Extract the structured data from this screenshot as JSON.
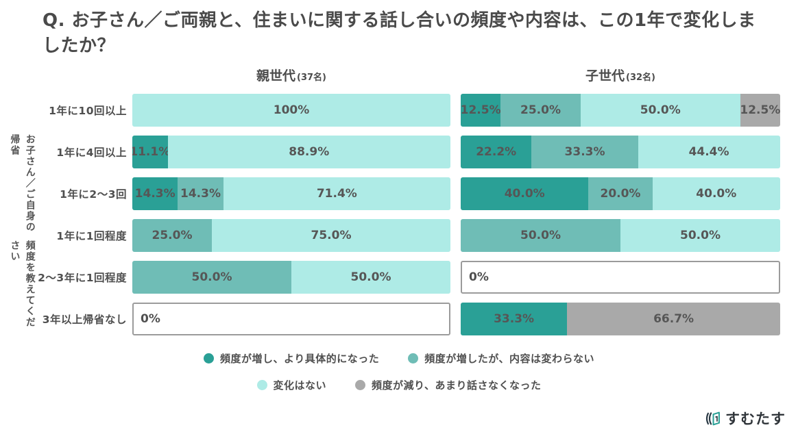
{
  "title": "Q. お子さん／ご両親と、住まいに関する話し合いの頻度や内容は、この1年で変化しましたか？",
  "axis": {
    "line1": "お子さん／ご自身の帰省",
    "line2": "頻度を教えてください"
  },
  "logo": {
    "text": "すむたす"
  },
  "chart_data": {
    "type": "bar",
    "orientation": "horizontal-stacked",
    "unit": "%",
    "zero_label": "0%",
    "categories": [
      "1年に10回以上",
      "1年に4回以上",
      "1年に2〜3回",
      "1年に1回程度",
      "2〜3年に1回程度",
      "3年以上帰省なし"
    ],
    "legend": [
      {
        "key": "increased_concrete",
        "label": "頻度が増し、より具体的になった",
        "color": "#2aa096"
      },
      {
        "key": "increased_same",
        "label": "頻度が増したが、内容は変わらない",
        "color": "#6fbdb6"
      },
      {
        "key": "no_change",
        "label": "変化はない",
        "color": "#aeebe6"
      },
      {
        "key": "decreased",
        "label": "頻度が減り、あまり話さなくなった",
        "color": "#a9a9a9"
      }
    ],
    "legend_rows": [
      [
        "increased_concrete",
        "increased_same"
      ],
      [
        "no_change",
        "decreased"
      ]
    ],
    "groups": [
      {
        "name": "親世代",
        "count_label": "(37名)",
        "rows": [
          {
            "segments": [
              {
                "key": "no_change",
                "value": 100,
                "label": "100%"
              }
            ]
          },
          {
            "segments": [
              {
                "key": "increased_concrete",
                "value": 11.1,
                "label": "11.1%"
              },
              {
                "key": "no_change",
                "value": 88.9,
                "label": "88.9%"
              }
            ]
          },
          {
            "segments": [
              {
                "key": "increased_concrete",
                "value": 14.3,
                "label": "14.3%"
              },
              {
                "key": "increased_same",
                "value": 14.3,
                "label": "14.3%"
              },
              {
                "key": "no_change",
                "value": 71.4,
                "label": "71.4%"
              }
            ]
          },
          {
            "segments": [
              {
                "key": "increased_same",
                "value": 25.0,
                "label": "25.0%"
              },
              {
                "key": "no_change",
                "value": 75.0,
                "label": "75.0%"
              }
            ]
          },
          {
            "segments": [
              {
                "key": "increased_same",
                "value": 50.0,
                "label": "50.0%"
              },
              {
                "key": "no_change",
                "value": 50.0,
                "label": "50.0%"
              }
            ]
          },
          {
            "segments": []
          }
        ]
      },
      {
        "name": "子世代",
        "count_label": "(32名)",
        "rows": [
          {
            "segments": [
              {
                "key": "increased_concrete",
                "value": 12.5,
                "label": "12.5%"
              },
              {
                "key": "increased_same",
                "value": 25.0,
                "label": "25.0%"
              },
              {
                "key": "no_change",
                "value": 50.0,
                "label": "50.0%"
              },
              {
                "key": "decreased",
                "value": 12.5,
                "label": "12.5%"
              }
            ]
          },
          {
            "segments": [
              {
                "key": "increased_concrete",
                "value": 22.2,
                "label": "22.2%"
              },
              {
                "key": "increased_same",
                "value": 33.3,
                "label": "33.3%"
              },
              {
                "key": "no_change",
                "value": 44.4,
                "label": "44.4%"
              }
            ]
          },
          {
            "segments": [
              {
                "key": "increased_concrete",
                "value": 40.0,
                "label": "40.0%"
              },
              {
                "key": "increased_same",
                "value": 20.0,
                "label": "20.0%"
              },
              {
                "key": "no_change",
                "value": 40.0,
                "label": "40.0%"
              }
            ]
          },
          {
            "segments": [
              {
                "key": "increased_same",
                "value": 50.0,
                "label": "50.0%"
              },
              {
                "key": "no_change",
                "value": 50.0,
                "label": "50.0%"
              }
            ]
          },
          {
            "segments": []
          },
          {
            "segments": [
              {
                "key": "increased_concrete",
                "value": 33.3,
                "label": "33.3%"
              },
              {
                "key": "decreased",
                "value": 66.7,
                "label": "66.7%"
              }
            ]
          }
        ]
      }
    ]
  }
}
